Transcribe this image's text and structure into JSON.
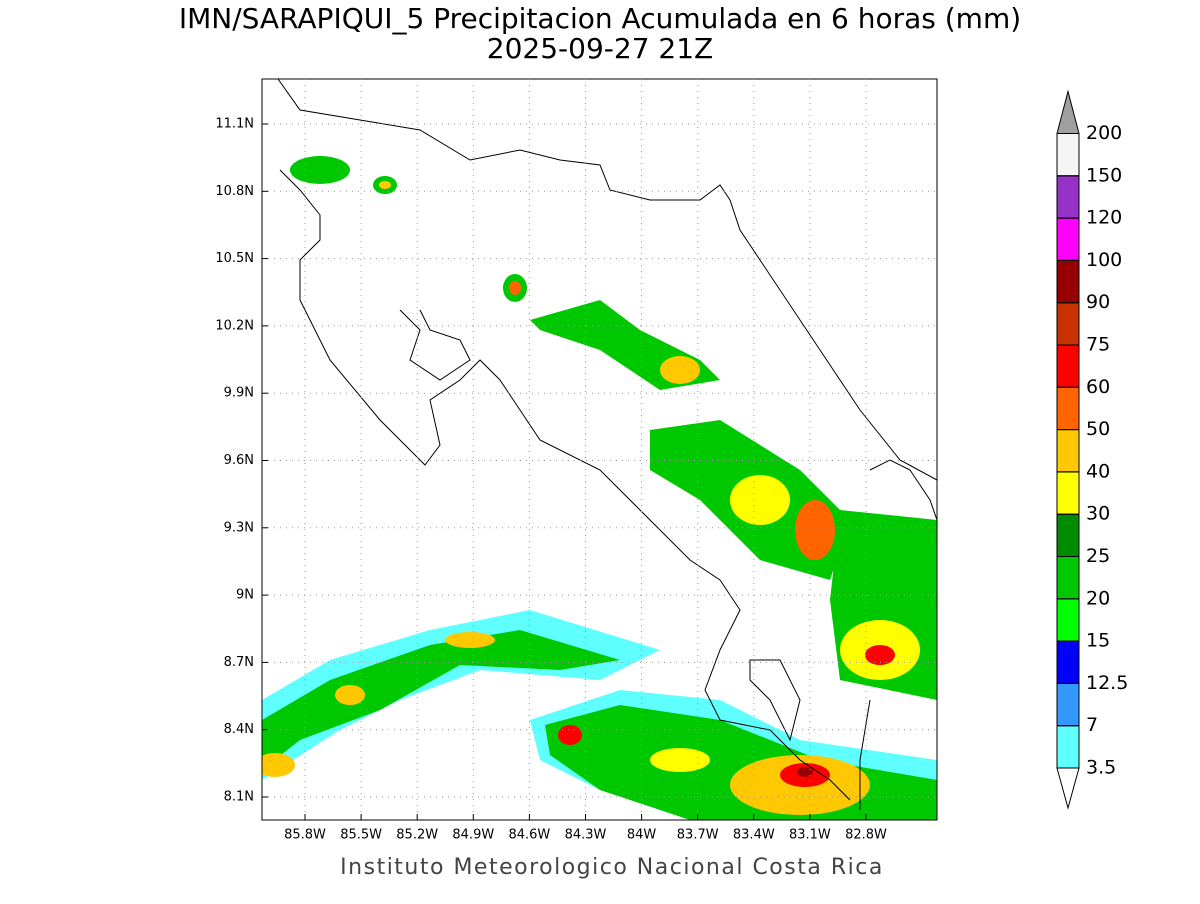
{
  "title": "IMN/SARAPIQUI_5 Precipitacion Acumulada en 6 horas (mm)",
  "subtitle": "2025-09-27 21Z",
  "footer": "Instituto Meteorologico Nacional Costa Rica",
  "map": {
    "lat_ticks": [
      {
        "value": 11.1,
        "label": "11.1N"
      },
      {
        "value": 10.8,
        "label": "10.8N"
      },
      {
        "value": 10.5,
        "label": "10.5N"
      },
      {
        "value": 10.2,
        "label": "10.2N"
      },
      {
        "value": 9.9,
        "label": "9.9N"
      },
      {
        "value": 9.6,
        "label": "9.6N"
      },
      {
        "value": 9.3,
        "label": "9.3N"
      },
      {
        "value": 9,
        "label": "9N"
      },
      {
        "value": 8.7,
        "label": "8.7N"
      },
      {
        "value": 8.4,
        "label": "8.4N"
      },
      {
        "value": 8.1,
        "label": "8.1N"
      }
    ],
    "lon_ticks": [
      {
        "value": -85.8,
        "label": "85.8W"
      },
      {
        "value": -85.5,
        "label": "85.5W"
      },
      {
        "value": -85.2,
        "label": "85.2W"
      },
      {
        "value": -84.9,
        "label": "84.9W"
      },
      {
        "value": -84.6,
        "label": "84.6W"
      },
      {
        "value": -84.3,
        "label": "84.3W"
      },
      {
        "value": -84,
        "label": "84W"
      },
      {
        "value": -83.7,
        "label": "83.7W"
      },
      {
        "value": -83.4,
        "label": "83.4W"
      },
      {
        "value": -83.1,
        "label": "83.1W"
      },
      {
        "value": -82.8,
        "label": "82.8W"
      }
    ],
    "colorbar": {
      "levels": [
        3.5,
        7,
        12.5,
        15,
        20,
        25,
        30,
        40,
        50,
        60,
        75,
        90,
        100,
        120,
        150,
        200
      ],
      "colors": [
        "#ffffff",
        "#5fffff",
        "#3399ff",
        "#0000ff",
        "#00ff00",
        "#00c800",
        "#008c00",
        "#ffff00",
        "#ffc800",
        "#ff6400",
        "#ff0000",
        "#c83200",
        "#960000",
        "#ff00ff",
        "#9632c8",
        "#f5f5f5",
        "#a0a0a0"
      ]
    }
  }
}
